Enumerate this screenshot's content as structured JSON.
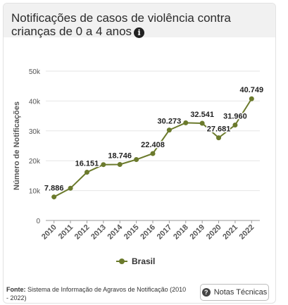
{
  "header": {
    "title": "Notificações de casos de violência contra crianças de 0 a 4 anos",
    "info_icon": "info-icon"
  },
  "chart_data": {
    "type": "line",
    "title": "",
    "xlabel": "",
    "ylabel": "Número de Notificações",
    "x": [
      "2010",
      "2011",
      "2012",
      "2013",
      "2014",
      "2015",
      "2016",
      "2017",
      "2018",
      "2019",
      "2020",
      "2021",
      "2022"
    ],
    "series": [
      {
        "name": "Brasil",
        "values": [
          7886,
          10800,
          16151,
          18700,
          18746,
          20400,
          22408,
          30273,
          32700,
          32541,
          27681,
          31960,
          40749
        ]
      }
    ],
    "data_labels": [
      {
        "index": 0,
        "text": "7.886"
      },
      {
        "index": 2,
        "text": "16.151"
      },
      {
        "index": 4,
        "text": "18.746"
      },
      {
        "index": 6,
        "text": "22.408"
      },
      {
        "index": 7,
        "text": "30.273"
      },
      {
        "index": 9,
        "text": "32.541"
      },
      {
        "index": 10,
        "text": "27.681"
      },
      {
        "index": 11,
        "text": "31.960"
      },
      {
        "index": 12,
        "text": "40.749"
      }
    ],
    "ylim": [
      0,
      50000
    ],
    "yticks": [
      0,
      10000,
      20000,
      30000,
      40000,
      50000
    ],
    "ytick_labels": [
      "0",
      "10k",
      "20k",
      "30k",
      "40k",
      "50k"
    ],
    "grid": true,
    "legend_position": "bottom",
    "color": "#6b7a2c"
  },
  "legend": {
    "label": "Brasil"
  },
  "footer": {
    "source_label": "Fonte:",
    "source_text": "Sistema de Informação de Agravos de Notificação (2010 - 2022)"
  },
  "notes_button": {
    "label": "Notas Técnicas",
    "icon": "question-icon"
  }
}
